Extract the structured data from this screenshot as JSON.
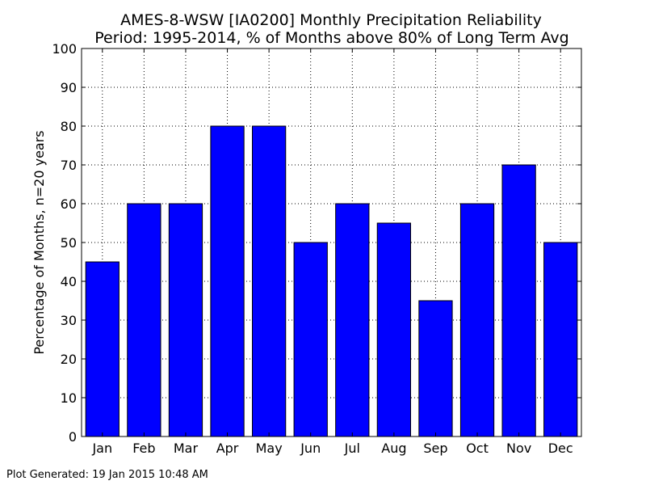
{
  "footer": {
    "generated": "Plot Generated: 19 Jan 2015 10:48 AM"
  },
  "colors": {
    "bar_fill": "#0000ff",
    "bar_stroke": "#000000",
    "grid": "#000000",
    "axis": "#000000"
  },
  "chart_data": {
    "type": "bar",
    "title": "AMES-8-WSW [IA0200] Monthly Precipitation Reliability",
    "subtitle": "Period: 1995-2014, % of Months above 80% of Long Term Avg",
    "xlabel": "",
    "ylabel": "Percentage of Months, n=20 years",
    "categories": [
      "Jan",
      "Feb",
      "Mar",
      "Apr",
      "May",
      "Jun",
      "Jul",
      "Aug",
      "Sep",
      "Oct",
      "Nov",
      "Dec"
    ],
    "values": [
      45,
      60,
      60,
      80,
      80,
      50,
      60,
      55,
      35,
      60,
      70,
      50
    ],
    "ylim": [
      0,
      100
    ],
    "yticks": [
      0,
      10,
      20,
      30,
      40,
      50,
      60,
      70,
      80,
      90,
      100
    ],
    "grid": true,
    "grid_style": "dotted"
  }
}
